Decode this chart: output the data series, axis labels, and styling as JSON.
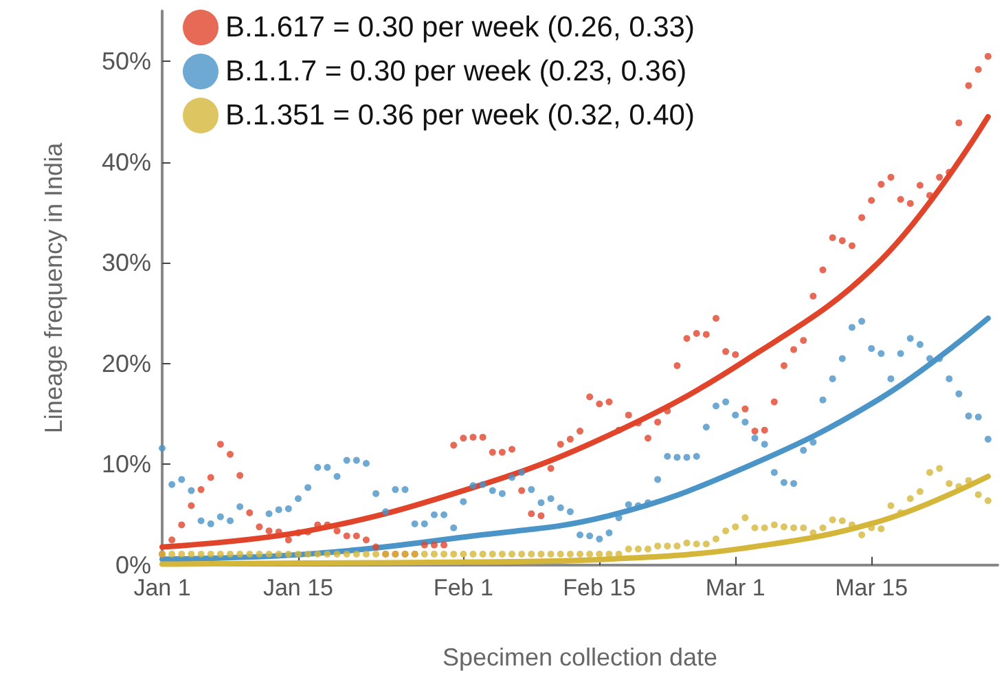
{
  "chart_data": {
    "type": "scatter",
    "xlabel": "Specimen collection date",
    "ylabel": "Lineage frequency in India",
    "x": [
      "--01-01",
      "--01-02",
      "--01-03",
      "--01-04",
      "--01-05",
      "--01-06",
      "--01-07",
      "--01-08",
      "--01-09",
      "--01-10",
      "--01-11",
      "--01-12",
      "--01-13",
      "--01-14",
      "--01-15",
      "--01-16",
      "--01-17",
      "--01-18",
      "--01-19",
      "--01-20",
      "--01-21",
      "--01-22",
      "--01-23",
      "--01-24",
      "--01-25",
      "--01-26",
      "--01-27",
      "--01-28",
      "--01-29",
      "--01-30",
      "--01-31",
      "--02-01",
      "--02-02",
      "--02-03",
      "--02-04",
      "--02-05",
      "--02-06",
      "--02-07",
      "--02-08",
      "--02-09",
      "--02-10",
      "--02-11",
      "--02-12",
      "--02-13",
      "--02-14",
      "--02-15",
      "--02-16",
      "--02-17",
      "--02-18",
      "--02-19",
      "--02-20",
      "--02-21",
      "--02-22",
      "--02-23",
      "--02-24",
      "--02-25",
      "--02-26",
      "--02-27",
      "--02-28",
      "--03-01",
      "--03-02",
      "--03-03",
      "--03-04",
      "--03-05",
      "--03-06",
      "--03-07",
      "--03-08",
      "--03-09",
      "--03-10",
      "--03-11",
      "--03-12",
      "--03-13",
      "--03-14",
      "--03-15",
      "--03-16",
      "--03-17",
      "--03-18",
      "--03-19",
      "--03-20",
      "--03-21",
      "--03-22",
      "--03-23",
      "--03-24",
      "--03-25",
      "--03-26",
      "--03-27"
    ],
    "series": [
      {
        "name": "B.1.617 = 0.30 per week (0.26, 0.33)",
        "color": "#e0452b",
        "values": [
          1.1,
          2.5,
          4,
          5.9,
          7.5,
          8.7,
          12,
          11,
          8.9,
          5.2,
          3.8,
          3.4,
          3.3,
          2.5,
          3.2,
          3.3,
          4,
          4,
          3.4,
          2.9,
          2.9,
          2.5,
          1.8,
          1.1,
          1.1,
          1.1,
          1.1,
          2,
          2,
          2,
          11.9,
          12.6,
          12.7,
          12.7,
          11.2,
          11.2,
          11.5,
          7.4,
          5.1,
          4.9,
          9.6,
          12,
          12.5,
          13.3,
          16.7,
          16,
          16.2,
          13.4,
          14.9,
          14.1,
          12.6,
          14.2,
          15.3,
          19.8,
          22.5,
          23,
          22.9,
          24.5,
          21.2,
          20.9,
          15.5,
          13.3,
          13.4,
          16.2,
          19.8,
          21.4,
          22.3,
          26.7,
          29.3,
          32.5,
          32.2,
          31.7,
          34.5,
          36.2,
          37.8,
          38.5,
          36.3,
          35.9,
          37.7,
          36.7,
          38.5,
          39,
          43.9,
          47.6,
          49.2,
          50.5
        ]
      },
      {
        "name": "B.1.1.7 = 0.30 per week (0.23, 0.36)",
        "color": "#4a94c8",
        "values": [
          11.6,
          8,
          8.5,
          7.4,
          4.4,
          4.1,
          4.8,
          4.4,
          5.8,
          null,
          null,
          5.1,
          5.5,
          5.6,
          6.6,
          7.7,
          9.7,
          9.7,
          8.8,
          10.4,
          10.4,
          10.1,
          7.1,
          5.3,
          7.5,
          7.5,
          4.1,
          4.1,
          5,
          5,
          3.7,
          6.3,
          7.9,
          8,
          7.4,
          7.1,
          8.7,
          9.2,
          7.5,
          6.2,
          6.6,
          5.7,
          5.3,
          3,
          2.9,
          2.6,
          3.2,
          4.7,
          6,
          5.9,
          6.2,
          8.5,
          10.8,
          10.7,
          10.7,
          10.8,
          13.7,
          15.8,
          16.2,
          14.9,
          14.2,
          12.6,
          12,
          9.2,
          8.2,
          8.1,
          11.4,
          12.2,
          16.4,
          18.5,
          20.5,
          23.6,
          24.2,
          21.5,
          21,
          18.5,
          21,
          22.5,
          21.9,
          20.5,
          20.5,
          18.5,
          17,
          14.8,
          14.7,
          12.5
        ]
      },
      {
        "name": "B.1.351 = 0.36 per week (0.32, 0.40)",
        "color": "#d4b63a",
        "values": [
          1.1,
          1.1,
          1.1,
          1.1,
          1.1,
          1.1,
          1.1,
          1.1,
          1.1,
          1.1,
          1.1,
          1.1,
          1.1,
          1.1,
          1.1,
          1.1,
          1.1,
          1.1,
          1.1,
          1.1,
          1.1,
          1.1,
          1.1,
          1.1,
          1.1,
          1.1,
          1.1,
          1.1,
          1.1,
          1.1,
          1.1,
          1.1,
          1.1,
          1.1,
          1.1,
          1.1,
          1.1,
          1.1,
          1.1,
          1.1,
          1.1,
          1.1,
          1.1,
          1.1,
          1.1,
          1.1,
          1.1,
          1.1,
          1.6,
          1.6,
          1.6,
          1.9,
          1.9,
          1.9,
          2.2,
          2.1,
          2.1,
          2.6,
          3.4,
          3.8,
          4.7,
          3.7,
          3.7,
          4,
          3.8,
          3.7,
          3.7,
          3.2,
          3.7,
          4.5,
          4.4,
          4,
          3,
          3.7,
          3.6,
          5.9,
          5.2,
          6.6,
          7.3,
          9.2,
          9.6,
          8.1,
          7.8,
          8.4,
          7,
          6.4
        ]
      },
      {
        "type": "line",
        "marker": "none",
        "color": "#e0452b",
        "x": [
          "--01-01",
          "--01-16",
          "--02-02",
          "--02-16",
          "--03-02",
          "--03-16",
          "--03-27"
        ],
        "values": [
          1.8,
          3.4,
          7.7,
          12.9,
          20.3,
          30.3,
          44.5
        ]
      },
      {
        "type": "line",
        "marker": "none",
        "color": "#4a94c8",
        "x": [
          "--01-01",
          "--01-16",
          "--02-02",
          "--02-16",
          "--03-02",
          "--03-16",
          "--03-27"
        ],
        "values": [
          0.6,
          1.1,
          2.9,
          4.9,
          9.7,
          16.6,
          24.5
        ]
      },
      {
        "type": "line",
        "marker": "none",
        "color": "#d4b63a",
        "x": [
          "--01-01",
          "--01-16",
          "--02-02",
          "--02-16",
          "--03-02",
          "--03-16",
          "--03-27"
        ],
        "values": [
          0.1,
          0.2,
          0.3,
          0.6,
          1.7,
          4.4,
          8.8
        ]
      }
    ],
    "xlim": [
      "--01-01",
      "--03-28"
    ],
    "xticks": [
      {
        "value": "--01-01",
        "label": "Jan 1"
      },
      {
        "value": "--01-15",
        "label": "Jan 15"
      },
      {
        "value": "--02-01",
        "label": "Feb 1"
      },
      {
        "value": "--02-15",
        "label": "Feb 15"
      },
      {
        "value": "--03-01",
        "label": "Mar 1"
      },
      {
        "value": "--03-15",
        "label": "Mar 15"
      }
    ],
    "ylim": [
      0,
      55
    ],
    "yticks": [
      {
        "value": 0,
        "label": "0%"
      },
      {
        "value": 10,
        "label": "10%"
      },
      {
        "value": 20,
        "label": "20%"
      },
      {
        "value": 30,
        "label": "30%"
      },
      {
        "value": 40,
        "label": "40%"
      },
      {
        "value": 50,
        "label": "50%"
      }
    ],
    "legend": "top left",
    "marker": "circle",
    "line_style": "solid",
    "grid": false
  }
}
